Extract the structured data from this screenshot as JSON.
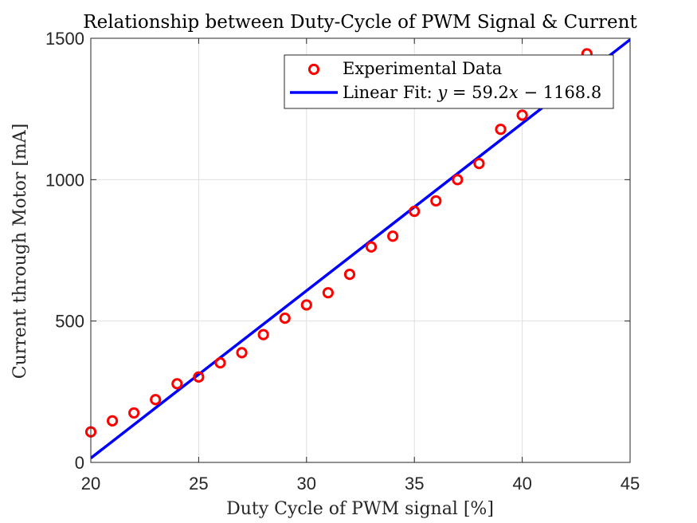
{
  "chart_data": {
    "type": "scatter",
    "title": "Relationship between Duty-Cycle of PWM Signal & Current",
    "xlabel": "Duty Cycle of PWM signal [%]",
    "ylabel": "Current through Motor [mA]",
    "xlim": [
      20,
      45
    ],
    "ylim": [
      0,
      1500
    ],
    "xticks": [
      20,
      25,
      30,
      35,
      40,
      45
    ],
    "yticks": [
      0,
      500,
      1000,
      1500
    ],
    "xtick_labels": [
      "20",
      "25",
      "30",
      "35",
      "40",
      "45"
    ],
    "ytick_labels": [
      "0",
      "500",
      "1000",
      "1500"
    ],
    "grid": true,
    "legend_position": "top-right",
    "series": [
      {
        "name": "Experimental Data",
        "kind": "scatter",
        "marker": "circle",
        "color": "#ff0000",
        "x": [
          20,
          21,
          22,
          23,
          24,
          25,
          26,
          27,
          28,
          29,
          30,
          31,
          32,
          33,
          34,
          35,
          36,
          37,
          38,
          39,
          40,
          43
        ],
        "y": [
          108,
          147,
          175,
          222,
          278,
          302,
          352,
          388,
          452,
          510,
          557,
          600,
          665,
          762,
          800,
          888,
          925,
          1000,
          1057,
          1178,
          1228,
          1445
        ]
      },
      {
        "name": "Linear Fit: ",
        "equation": {
          "lhs": "y",
          "eq": " = 59.2",
          "var": "x",
          "minus": " − ",
          "const": "1168.8"
        },
        "kind": "line",
        "color": "#0000ff",
        "slope": 59.2,
        "intercept": -1168.8
      }
    ]
  }
}
